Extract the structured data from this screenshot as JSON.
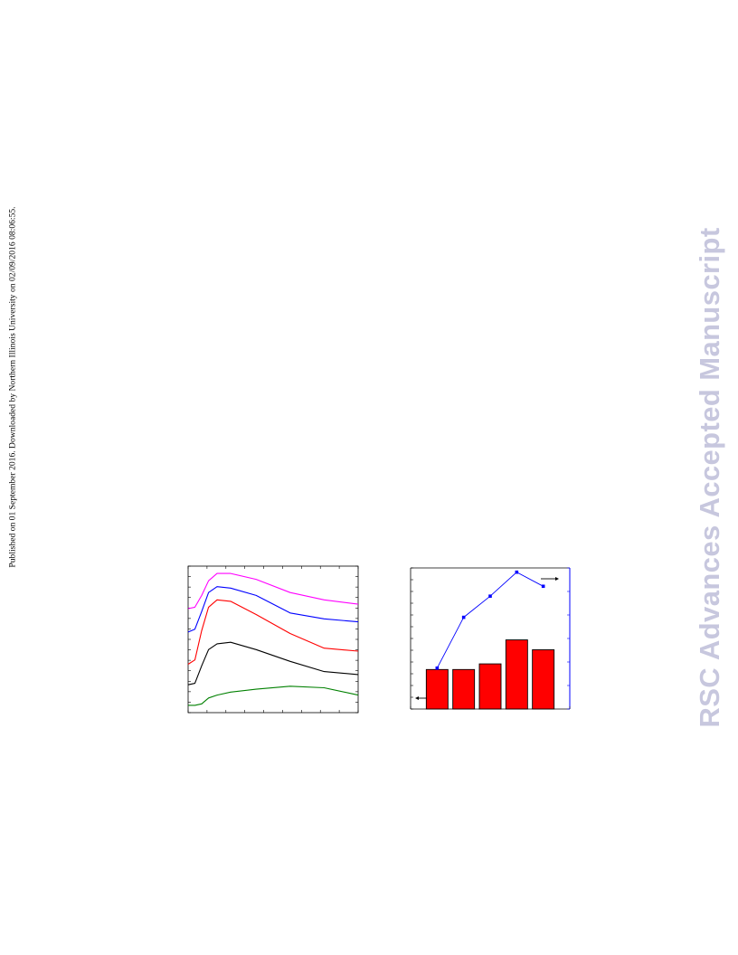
{
  "side_note": "Published on 01 September 2016. Downloaded by Northern Illinois University on 02/09/2016 08:06:55.",
  "watermark": "RSC Advances Accepted Manuscript",
  "chart_data": [
    {
      "type": "line",
      "title": "",
      "xlabel": "",
      "ylabel": "",
      "xlim": [
        0,
        1
      ],
      "ylim": [
        0,
        1
      ],
      "series": [
        {
          "color": "#ff00ff",
          "x": [
            0,
            0.04,
            0.08,
            0.12,
            0.17,
            0.25,
            0.4,
            0.6,
            0.8,
            1.0
          ],
          "y": [
            0.71,
            0.72,
            0.8,
            0.9,
            0.95,
            0.95,
            0.91,
            0.82,
            0.77,
            0.74
          ]
        },
        {
          "color": "#0000ff",
          "x": [
            0,
            0.04,
            0.08,
            0.12,
            0.17,
            0.25,
            0.4,
            0.6,
            0.8,
            1.0
          ],
          "y": [
            0.55,
            0.57,
            0.69,
            0.82,
            0.86,
            0.85,
            0.8,
            0.68,
            0.64,
            0.62
          ]
        },
        {
          "color": "#ff0000",
          "x": [
            0,
            0.04,
            0.08,
            0.12,
            0.17,
            0.25,
            0.4,
            0.6,
            0.8,
            1.0
          ],
          "y": [
            0.33,
            0.36,
            0.56,
            0.72,
            0.77,
            0.76,
            0.67,
            0.54,
            0.44,
            0.42
          ]
        },
        {
          "color": "#000000",
          "x": [
            0,
            0.04,
            0.08,
            0.12,
            0.17,
            0.25,
            0.4,
            0.6,
            0.8,
            1.0
          ],
          "y": [
            0.19,
            0.2,
            0.32,
            0.43,
            0.47,
            0.48,
            0.43,
            0.35,
            0.28,
            0.26
          ]
        },
        {
          "color": "#008000",
          "x": [
            0,
            0.04,
            0.08,
            0.12,
            0.17,
            0.25,
            0.4,
            0.6,
            0.8,
            1.0
          ],
          "y": [
            0.05,
            0.05,
            0.06,
            0.1,
            0.12,
            0.14,
            0.16,
            0.18,
            0.17,
            0.12
          ]
        }
      ]
    },
    {
      "type": "bar",
      "title": "",
      "xlabel": "",
      "ylabel": "",
      "ylim": [
        0,
        1
      ],
      "categories": [
        "",
        "",
        "",
        "",
        ""
      ],
      "bar_color": "#ff0000",
      "line_color": "#0000ff",
      "values": [
        0.28,
        0.28,
        0.32,
        0.49,
        0.42
      ],
      "secondary_values": [
        0.29,
        0.65,
        0.8,
        0.97,
        0.87
      ]
    }
  ]
}
